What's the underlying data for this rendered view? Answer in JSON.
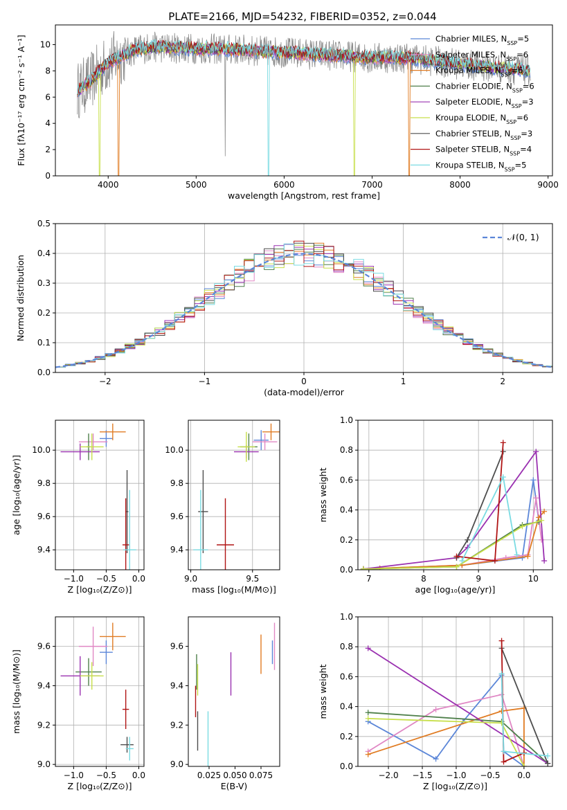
{
  "figure": {
    "title": "PLATE=2166, MJD=54232, FIBERID=0352, z=0.044"
  },
  "series_colors": {
    "Chabrier MILES": "#5b86d8",
    "Salpeter MILES": "#e087c4",
    "Kroupa MILES": "#e07b22",
    "Chabrier ELODIE": "#4e7f4a",
    "Salpeter ELODIE": "#9a30b0",
    "Kroupa ELODIE": "#c7df4a",
    "Chabrier STELIB": "#4d4d4d",
    "Salpeter STELIB": "#b01414",
    "Kroupa STELIB": "#7adbe2"
  },
  "chart_data": [
    {
      "id": "spectrum",
      "type": "line",
      "xlabel": "wavelength [Angstrom, rest frame]",
      "ylabel": "Flux [fλ10⁻¹⁷ erg cm⁻² s⁻¹ A⁻¹]",
      "xlim": [
        3400,
        9050
      ],
      "ylim": [
        0,
        11.5
      ],
      "xticks": [
        4000,
        5000,
        6000,
        7000,
        8000,
        9000
      ],
      "yticks": [
        0,
        2,
        4,
        6,
        8,
        10
      ],
      "grid": false,
      "legend_position": "right",
      "legend": [
        {
          "name": "Chabrier MILES",
          "n": "5"
        },
        {
          "name": "Salpeter MILES",
          "n": "6"
        },
        {
          "name": "Kroupa MILES",
          "n": "6"
        },
        {
          "name": "Chabrier ELODIE",
          "n": "6"
        },
        {
          "name": "Salpeter ELODIE",
          "n": "3"
        },
        {
          "name": "Kroupa ELODIE",
          "n": "6"
        },
        {
          "name": "Chabrier STELIB",
          "n": "3"
        },
        {
          "name": "Salpeter STELIB",
          "n": "4"
        },
        {
          "name": "Kroupa STELIB",
          "n": "5"
        }
      ],
      "observed_range": [
        3650,
        8800
      ],
      "continuum": [
        [
          3650,
          6.5
        ],
        [
          3800,
          7.2
        ],
        [
          3900,
          8.0
        ],
        [
          4000,
          8.6
        ],
        [
          4100,
          9.0
        ],
        [
          4300,
          9.6
        ],
        [
          4500,
          9.8
        ],
        [
          5000,
          9.7
        ],
        [
          5500,
          9.6
        ],
        [
          6000,
          9.4
        ],
        [
          6500,
          9.2
        ],
        [
          7000,
          9.0
        ],
        [
          7400,
          9.0
        ],
        [
          8000,
          8.5
        ],
        [
          8500,
          8.2
        ],
        [
          8800,
          8.0
        ]
      ],
      "dropouts": [
        {
          "series": "Kroupa ELODIE",
          "x": 3900
        },
        {
          "series": "Kroupa MILES",
          "x": 4120
        },
        {
          "series": "Kroupa STELIB",
          "x": 5820
        },
        {
          "series": "Kroupa ELODIE",
          "x": 6800
        },
        {
          "series": "Kroupa MILES",
          "x": 7420
        }
      ],
      "observed_dip": {
        "x": 5330,
        "y": 1.5
      }
    },
    {
      "id": "residuals",
      "type": "bar",
      "xlabel": "(data-model)/error",
      "ylabel": "Normed distribution",
      "xlim": [
        -2.5,
        2.5
      ],
      "ylim": [
        0,
        0.5
      ],
      "xticks": [
        -2,
        -1,
        0,
        1,
        2
      ],
      "yticks": [
        0.0,
        0.1,
        0.2,
        0.3,
        0.4,
        0.5
      ],
      "grid": true,
      "legend_position": "top-right",
      "reference_curve": {
        "name": "𝒩(0, 1)",
        "mean": 0,
        "sigma": 1
      },
      "bin_width": 0.1,
      "bin_start": -2.5
    },
    {
      "id": "age-vs-Z",
      "type": "scatter",
      "xlabel": "Z [log₁₀(Z/Z⊙)]",
      "ylabel": "age  [log₁₀(age/yr)]",
      "xlim": [
        -1.28,
        0.08
      ],
      "ylim": [
        9.28,
        10.18
      ],
      "xticks": [
        -1.0,
        -0.5,
        0.0
      ],
      "yticks": [
        9.4,
        9.6,
        9.8,
        10.0
      ],
      "grid": true,
      "points": [
        {
          "series": "Chabrier MILES",
          "x": -0.5,
          "xerr": 0.1,
          "y": 10.07,
          "yerr": 0.05
        },
        {
          "series": "Salpeter MILES",
          "x": -0.7,
          "xerr": 0.22,
          "y": 10.05,
          "yerr": 0.05
        },
        {
          "series": "Kroupa MILES",
          "x": -0.4,
          "xerr": 0.2,
          "y": 10.11,
          "yerr": 0.05
        },
        {
          "series": "Chabrier ELODIE",
          "x": -0.77,
          "xerr": 0.03,
          "y": 10.02,
          "yerr": 0.08
        },
        {
          "series": "Salpeter ELODIE",
          "x": -0.9,
          "xerr": 0.3,
          "y": 9.99,
          "yerr": 0.05
        },
        {
          "series": "Kroupa ELODIE",
          "x": -0.72,
          "xerr": 0.18,
          "y": 10.02,
          "yerr": 0.08
        },
        {
          "series": "Chabrier STELIB",
          "x": -0.18,
          "xerr": 0.02,
          "y": 9.63,
          "yerr": 0.25
        },
        {
          "series": "Salpeter STELIB",
          "x": -0.2,
          "xerr": 0.05,
          "y": 9.43,
          "yerr": 0.28
        },
        {
          "series": "Kroupa STELIB",
          "x": -0.14,
          "xerr": 0.1,
          "y": 9.4,
          "yerr": 0.36
        }
      ]
    },
    {
      "id": "age-vs-mass",
      "type": "scatter",
      "xlabel": "mass [log₁₀(M/M⊙)]",
      "ylabel": "",
      "xlim": [
        8.98,
        9.72
      ],
      "ylim": [
        9.28,
        10.18
      ],
      "xticks": [
        9.0,
        9.5
      ],
      "yticks": [
        9.4,
        9.6,
        9.8,
        10.0
      ],
      "grid": true,
      "points": [
        {
          "series": "Chabrier MILES",
          "x": 9.57,
          "xerr": 0.06,
          "y": 10.06,
          "yerr": 0.06
        },
        {
          "series": "Salpeter MILES",
          "x": 9.6,
          "xerr": 0.1,
          "y": 10.05,
          "yerr": 0.05
        },
        {
          "series": "Kroupa MILES",
          "x": 9.65,
          "xerr": 0.07,
          "y": 10.11,
          "yerr": 0.05
        },
        {
          "series": "Chabrier ELODIE",
          "x": 9.47,
          "xerr": 0.07,
          "y": 10.02,
          "yerr": 0.08
        },
        {
          "series": "Salpeter ELODIE",
          "x": 9.45,
          "xerr": 0.1,
          "y": 9.99,
          "yerr": 0.04
        },
        {
          "series": "Kroupa ELODIE",
          "x": 9.45,
          "xerr": 0.07,
          "y": 10.02,
          "yerr": 0.09
        },
        {
          "series": "Chabrier STELIB",
          "x": 9.1,
          "xerr": 0.04,
          "y": 9.63,
          "yerr": 0.25
        },
        {
          "series": "Salpeter STELIB",
          "x": 9.28,
          "xerr": 0.07,
          "y": 9.43,
          "yerr": 0.28
        },
        {
          "series": "Kroupa STELIB",
          "x": 9.08,
          "xerr": 0.06,
          "y": 9.4,
          "yerr": 0.36
        }
      ]
    },
    {
      "id": "massweight-vs-age",
      "type": "line",
      "xlabel": "age  [log₁₀(age/yr)]",
      "ylabel": "mass weight",
      "xlim": [
        6.8,
        10.35
      ],
      "ylim": [
        0,
        1.0
      ],
      "xticks": [
        7,
        8,
        9,
        10
      ],
      "yticks": [
        0.0,
        0.2,
        0.4,
        0.6,
        0.8,
        1.0
      ],
      "grid": true,
      "series": [
        {
          "name": "Chabrier MILES",
          "points": [
            [
              6.9,
              0.005
            ],
            [
              8.7,
              0.03
            ],
            [
              9.8,
              0.08
            ],
            [
              10.0,
              0.6
            ],
            [
              10.1,
              0.33
            ]
          ]
        },
        {
          "name": "Salpeter MILES",
          "points": [
            [
              6.9,
              0.005
            ],
            [
              8.7,
              0.03
            ],
            [
              9.5,
              0.08
            ],
            [
              9.9,
              0.1
            ],
            [
              10.05,
              0.48
            ],
            [
              10.15,
              0.2
            ]
          ]
        },
        {
          "name": "Kroupa MILES",
          "points": [
            [
              6.9,
              0.005
            ],
            [
              7.2,
              0.01
            ],
            [
              8.7,
              0.03
            ],
            [
              9.9,
              0.09
            ],
            [
              10.1,
              0.35
            ],
            [
              10.2,
              0.39
            ]
          ]
        },
        {
          "name": "Chabrier ELODIE",
          "points": [
            [
              6.9,
              0.005
            ],
            [
              8.6,
              0.02
            ],
            [
              9.8,
              0.3
            ],
            [
              10.1,
              0.32
            ]
          ]
        },
        {
          "name": "Salpeter ELODIE",
          "points": [
            [
              6.9,
              0.005
            ],
            [
              8.6,
              0.08
            ],
            [
              8.8,
              0.15
            ],
            [
              10.05,
              0.79
            ],
            [
              10.2,
              0.06
            ]
          ]
        },
        {
          "name": "Kroupa ELODIE",
          "points": [
            [
              6.9,
              0.005
            ],
            [
              8.6,
              0.02
            ],
            [
              9.8,
              0.29
            ],
            [
              10.15,
              0.33
            ]
          ]
        },
        {
          "name": "Chabrier STELIB",
          "points": [
            [
              8.6,
              0.08
            ],
            [
              8.8,
              0.2
            ],
            [
              9.45,
              0.79
            ]
          ]
        },
        {
          "name": "Salpeter STELIB",
          "points": [
            [
              8.6,
              0.09
            ],
            [
              9.3,
              0.06
            ],
            [
              9.45,
              0.85
            ]
          ]
        },
        {
          "name": "Kroupa STELIB",
          "points": [
            [
              8.7,
              0.06
            ],
            [
              9.45,
              0.62
            ],
            [
              9.7,
              0.1
            ]
          ]
        }
      ]
    },
    {
      "id": "mass-vs-Z",
      "type": "scatter",
      "xlabel": "Z [log₁₀(Z/Z⊙)]",
      "ylabel": "mass [log₁₀(M/M⊙)]",
      "xlim": [
        -1.28,
        0.08
      ],
      "ylim": [
        8.99,
        9.75
      ],
      "xticks": [
        -1.0,
        -0.5,
        0.0
      ],
      "yticks": [
        9.0,
        9.2,
        9.4,
        9.6
      ],
      "grid": true,
      "points": [
        {
          "series": "Chabrier MILES",
          "x": -0.5,
          "xerr": 0.1,
          "y": 9.57,
          "yerr": 0.06
        },
        {
          "series": "Salpeter MILES",
          "x": -0.7,
          "xerr": 0.22,
          "y": 9.6,
          "yerr": 0.1
        },
        {
          "series": "Kroupa MILES",
          "x": -0.4,
          "xerr": 0.2,
          "y": 9.65,
          "yerr": 0.07
        },
        {
          "series": "Chabrier ELODIE",
          "x": -0.77,
          "xerr": 0.2,
          "y": 9.47,
          "yerr": 0.07
        },
        {
          "series": "Salpeter ELODIE",
          "x": -0.9,
          "xerr": 0.3,
          "y": 9.45,
          "yerr": 0.1
        },
        {
          "series": "Kroupa ELODIE",
          "x": -0.72,
          "xerr": 0.18,
          "y": 9.45,
          "yerr": 0.07
        },
        {
          "series": "Chabrier STELIB",
          "x": -0.18,
          "xerr": 0.1,
          "y": 9.1,
          "yerr": 0.04
        },
        {
          "series": "Salpeter STELIB",
          "x": -0.2,
          "xerr": 0.05,
          "y": 9.28,
          "yerr": 0.1
        },
        {
          "series": "Kroupa STELIB",
          "x": -0.14,
          "xerr": 0.06,
          "y": 9.08,
          "yerr": 0.06
        }
      ]
    },
    {
      "id": "mass-vs-ebv",
      "type": "scatter",
      "xlabel": "E(B-V)",
      "ylabel": "",
      "xlim": [
        0.005,
        0.093
      ],
      "ylim": [
        8.99,
        9.75
      ],
      "xticks": [
        0.025,
        0.05,
        0.075
      ],
      "xticklabels": [
        "0.025",
        "0.050",
        "0.075"
      ],
      "yticks": [
        9.0,
        9.2,
        9.4,
        9.6
      ],
      "grid": false,
      "points": [
        {
          "series": "Chabrier MILES",
          "x": 0.086,
          "y": 9.57,
          "yerr": 0.06
        },
        {
          "series": "Salpeter MILES",
          "x": 0.088,
          "y": 9.6,
          "yerr": 0.12
        },
        {
          "series": "Kroupa MILES",
          "x": 0.075,
          "y": 9.56,
          "yerr": 0.1
        },
        {
          "series": "Chabrier ELODIE",
          "x": 0.013,
          "y": 9.47,
          "yerr": 0.09
        },
        {
          "series": "Salpeter ELODIE",
          "x": 0.046,
          "y": 9.46,
          "yerr": 0.11
        },
        {
          "series": "Kroupa ELODIE",
          "x": 0.014,
          "y": 9.43,
          "yerr": 0.08
        },
        {
          "series": "Chabrier STELIB",
          "x": 0.014,
          "y": 9.17,
          "yerr": 0.1
        },
        {
          "series": "Salpeter STELIB",
          "x": 0.012,
          "y": 9.32,
          "yerr": 0.08
        },
        {
          "series": "Kroupa STELIB",
          "x": 0.024,
          "y": 9.1,
          "yerr": 0.17
        }
      ]
    },
    {
      "id": "massweight-vs-Z",
      "type": "line",
      "xlabel": "Z [log₁₀(Z/Z⊙)]",
      "ylabel": "mass weight",
      "xlim": [
        -2.45,
        0.42
      ],
      "ylim": [
        0,
        1.0
      ],
      "xticks": [
        -2.0,
        -1.5,
        -1.0,
        -0.5,
        0.0
      ],
      "yticks": [
        0.0,
        0.2,
        0.4,
        0.6,
        0.8,
        1.0
      ],
      "grid": true,
      "series": [
        {
          "name": "Chabrier MILES",
          "points": [
            [
              -2.3,
              0.3
            ],
            [
              -1.3,
              0.05
            ],
            [
              -0.9,
              0.3
            ],
            [
              -0.33,
              0.61
            ],
            [
              -0.3,
              0.1
            ],
            [
              0.0,
              0.0
            ]
          ]
        },
        {
          "name": "Salpeter MILES",
          "points": [
            [
              -2.3,
              0.1
            ],
            [
              -1.3,
              0.38
            ],
            [
              -0.33,
              0.48
            ],
            [
              0.0,
              0.0
            ]
          ]
        },
        {
          "name": "Kroupa MILES",
          "points": [
            [
              -2.3,
              0.08
            ],
            [
              -0.33,
              0.37
            ],
            [
              0.0,
              0.39
            ],
            [
              0.0,
              0.0
            ]
          ]
        },
        {
          "name": "Chabrier ELODIE",
          "points": [
            [
              -2.3,
              0.36
            ],
            [
              -0.33,
              0.3
            ],
            [
              0.35,
              0.02
            ]
          ]
        },
        {
          "name": "Salpeter ELODIE",
          "points": [
            [
              -2.3,
              0.79
            ],
            [
              0.35,
              0.02
            ]
          ]
        },
        {
          "name": "Kroupa ELODIE",
          "points": [
            [
              -2.3,
              0.32
            ],
            [
              -0.33,
              0.29
            ],
            [
              0.0,
              0.0
            ]
          ]
        },
        {
          "name": "Chabrier STELIB",
          "points": [
            [
              -0.33,
              0.79
            ],
            [
              0.35,
              0.02
            ]
          ]
        },
        {
          "name": "Salpeter STELIB",
          "points": [
            [
              -0.33,
              0.84
            ],
            [
              -0.3,
              0.03
            ],
            [
              0.0,
              0.09
            ]
          ]
        },
        {
          "name": "Kroupa STELIB",
          "points": [
            [
              -0.33,
              0.62
            ],
            [
              -0.3,
              0.1
            ],
            [
              0.35,
              0.07
            ]
          ]
        }
      ]
    }
  ]
}
